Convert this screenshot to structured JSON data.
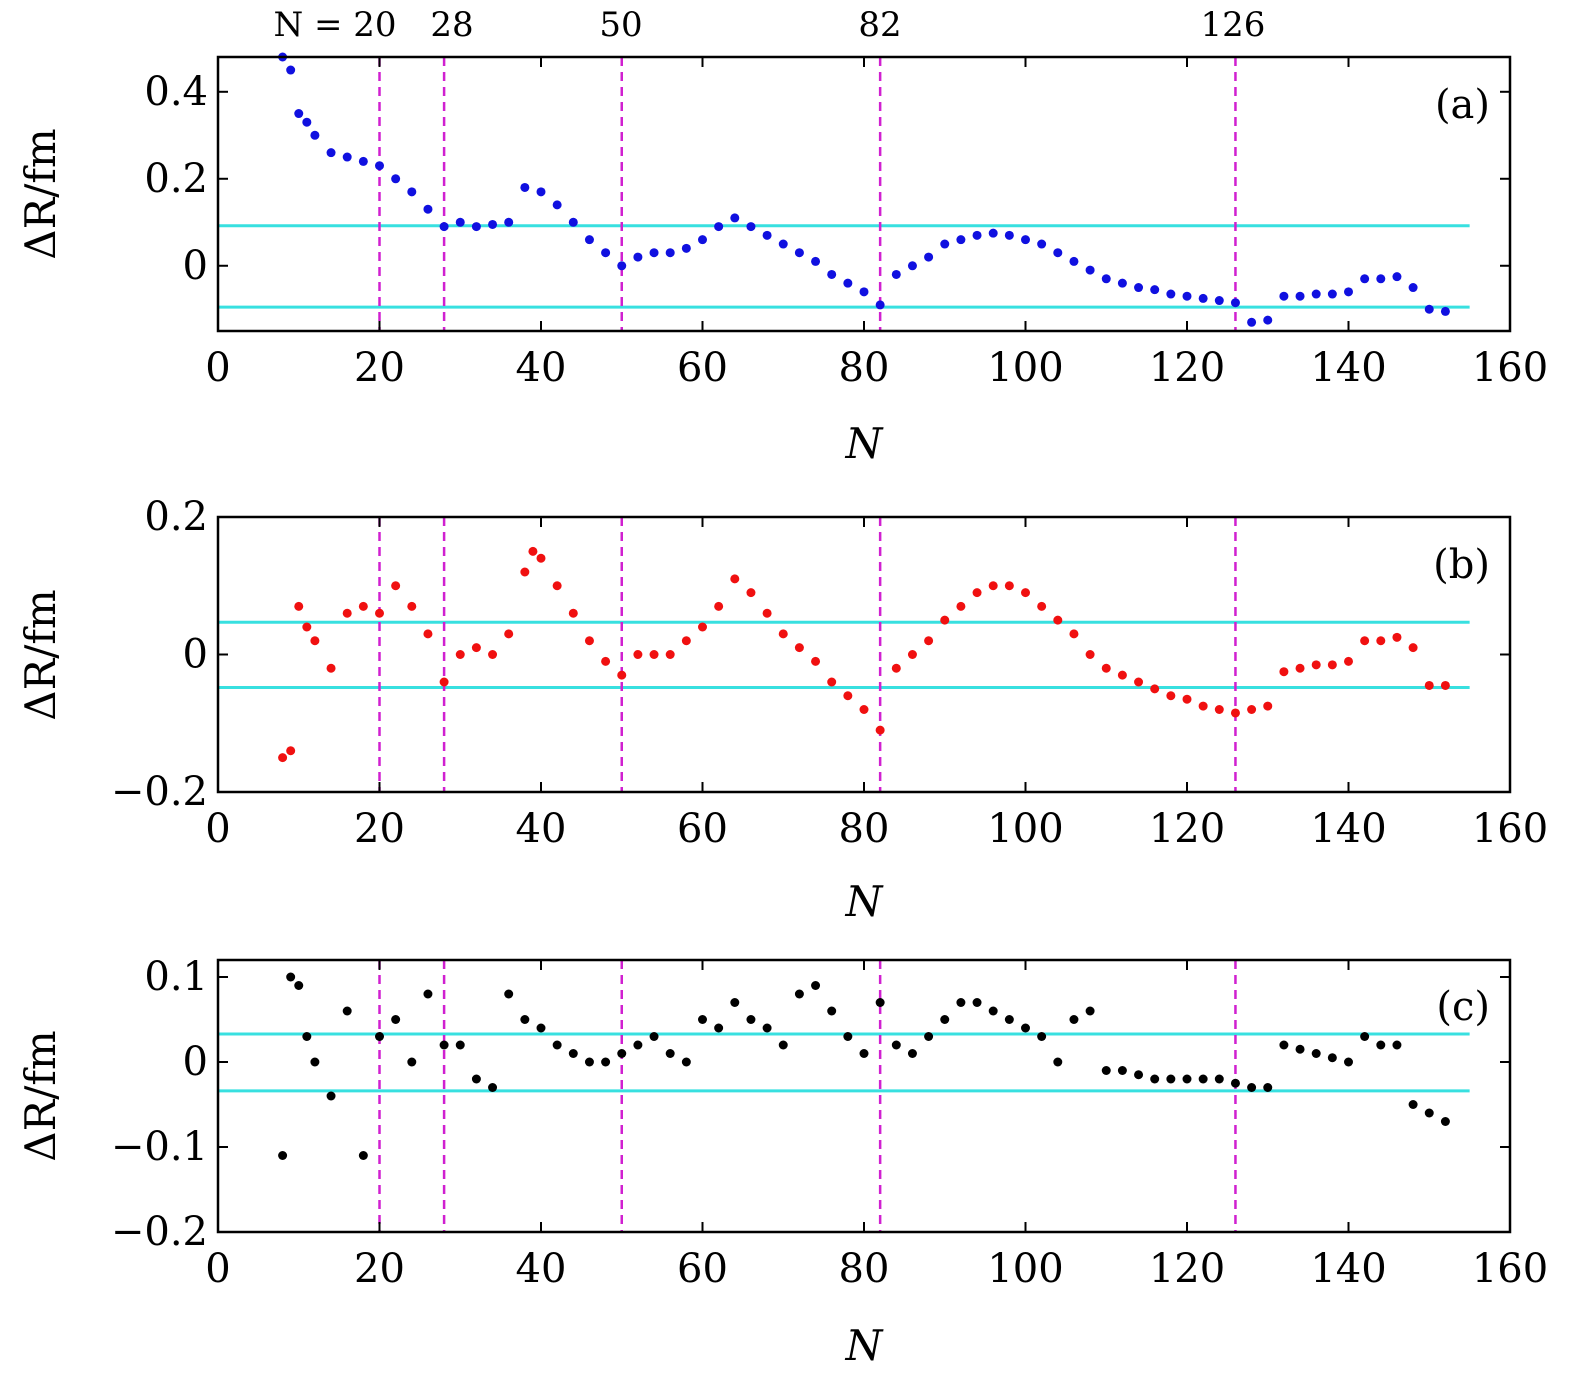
{
  "figure": {
    "magic_numbers": [
      20,
      28,
      50,
      82,
      126
    ],
    "magic_labels": [
      "N = 20",
      "28",
      "50",
      "82",
      "126"
    ],
    "colors": {
      "band": "#38e0e0",
      "magic_line": "#d020d0",
      "series_a": "#1010e0",
      "series_b": "#f01010",
      "series_c": "#000000"
    }
  },
  "chart_data": [
    {
      "type": "scatter",
      "panel_label": "(a)",
      "xlabel": "N",
      "ylabel": "ΔR/fm",
      "xlim": [
        0,
        160
      ],
      "ylim": [
        -0.15,
        0.48
      ],
      "xticks": [
        0,
        20,
        40,
        60,
        80,
        100,
        120,
        140,
        160
      ],
      "xtick_labels": [
        "0",
        "20",
        "40",
        "60",
        "80",
        "100",
        "120",
        "140",
        "160"
      ],
      "yticks": [
        0.4,
        0.2,
        0
      ],
      "ytick_labels": [
        "0.4",
        "0.2",
        "0"
      ],
      "band": [
        -0.095,
        0.092
      ],
      "color_key": "series_a",
      "series": [
        {
          "name": "trend",
          "points": [
            [
              8,
              0.48
            ],
            [
              9,
              0.45
            ],
            [
              10,
              0.35
            ],
            [
              11,
              0.33
            ],
            [
              12,
              0.3
            ],
            [
              14,
              0.26
            ],
            [
              16,
              0.25
            ],
            [
              18,
              0.24
            ],
            [
              20,
              0.23
            ],
            [
              22,
              0.2
            ],
            [
              24,
              0.17
            ],
            [
              26,
              0.13
            ],
            [
              28,
              0.09
            ],
            [
              30,
              0.1
            ],
            [
              32,
              0.09
            ],
            [
              34,
              0.095
            ],
            [
              36,
              0.1
            ],
            [
              38,
              0.18
            ],
            [
              40,
              0.17
            ],
            [
              42,
              0.14
            ],
            [
              44,
              0.1
            ],
            [
              46,
              0.06
            ],
            [
              48,
              0.03
            ],
            [
              50,
              0.0
            ],
            [
              52,
              0.02
            ],
            [
              54,
              0.03
            ],
            [
              56,
              0.03
            ],
            [
              58,
              0.04
            ],
            [
              60,
              0.06
            ],
            [
              62,
              0.09
            ],
            [
              64,
              0.11
            ],
            [
              66,
              0.09
            ],
            [
              68,
              0.07
            ],
            [
              70,
              0.05
            ],
            [
              72,
              0.03
            ],
            [
              74,
              0.01
            ],
            [
              76,
              -0.02
            ],
            [
              78,
              -0.04
            ],
            [
              80,
              -0.06
            ],
            [
              82,
              -0.09
            ],
            [
              84,
              -0.02
            ],
            [
              86,
              0.0
            ],
            [
              88,
              0.02
            ],
            [
              90,
              0.05
            ],
            [
              92,
              0.06
            ],
            [
              94,
              0.07
            ],
            [
              96,
              0.075
            ],
            [
              98,
              0.07
            ],
            [
              100,
              0.06
            ],
            [
              102,
              0.05
            ],
            [
              104,
              0.03
            ],
            [
              106,
              0.01
            ],
            [
              108,
              -0.01
            ],
            [
              110,
              -0.03
            ],
            [
              112,
              -0.04
            ],
            [
              114,
              -0.05
            ],
            [
              116,
              -0.055
            ],
            [
              118,
              -0.065
            ],
            [
              120,
              -0.07
            ],
            [
              122,
              -0.075
            ],
            [
              124,
              -0.08
            ],
            [
              126,
              -0.085
            ],
            [
              128,
              -0.13
            ],
            [
              130,
              -0.125
            ],
            [
              132,
              -0.07
            ],
            [
              134,
              -0.07
            ],
            [
              136,
              -0.065
            ],
            [
              138,
              -0.065
            ],
            [
              140,
              -0.06
            ],
            [
              142,
              -0.03
            ],
            [
              144,
              -0.03
            ],
            [
              146,
              -0.025
            ],
            [
              148,
              -0.05
            ],
            [
              150,
              -0.1
            ],
            [
              152,
              -0.105
            ]
          ]
        }
      ]
    },
    {
      "type": "scatter",
      "panel_label": "(b)",
      "xlabel": "N",
      "ylabel": "ΔR/fm",
      "xlim": [
        0,
        160
      ],
      "ylim": [
        -0.2,
        0.2
      ],
      "xticks": [
        0,
        20,
        40,
        60,
        80,
        100,
        120,
        140,
        160
      ],
      "xtick_labels": [
        "0",
        "20",
        "40",
        "60",
        "80",
        "100",
        "120",
        "140",
        "160"
      ],
      "yticks": [
        0.2,
        0,
        -0.2
      ],
      "ytick_labels": [
        "0.2",
        "0",
        "−0.2"
      ],
      "band": [
        -0.048,
        0.047
      ],
      "color_key": "series_b",
      "series": [
        {
          "name": "trend",
          "points": [
            [
              8,
              -0.15
            ],
            [
              9,
              -0.14
            ],
            [
              10,
              0.07
            ],
            [
              11,
              0.04
            ],
            [
              12,
              0.02
            ],
            [
              14,
              -0.02
            ],
            [
              16,
              0.06
            ],
            [
              18,
              0.07
            ],
            [
              20,
              0.06
            ],
            [
              22,
              0.1
            ],
            [
              24,
              0.07
            ],
            [
              26,
              0.03
            ],
            [
              28,
              -0.04
            ],
            [
              30,
              0.0
            ],
            [
              32,
              0.01
            ],
            [
              34,
              0.0
            ],
            [
              36,
              0.03
            ],
            [
              38,
              0.12
            ],
            [
              39,
              0.15
            ],
            [
              40,
              0.14
            ],
            [
              42,
              0.1
            ],
            [
              44,
              0.06
            ],
            [
              46,
              0.02
            ],
            [
              48,
              -0.01
            ],
            [
              50,
              -0.03
            ],
            [
              52,
              0.0
            ],
            [
              54,
              0.0
            ],
            [
              56,
              0.0
            ],
            [
              58,
              0.02
            ],
            [
              60,
              0.04
            ],
            [
              62,
              0.07
            ],
            [
              64,
              0.11
            ],
            [
              66,
              0.09
            ],
            [
              68,
              0.06
            ],
            [
              70,
              0.03
            ],
            [
              72,
              0.01
            ],
            [
              74,
              -0.01
            ],
            [
              76,
              -0.04
            ],
            [
              78,
              -0.06
            ],
            [
              80,
              -0.08
            ],
            [
              82,
              -0.11
            ],
            [
              84,
              -0.02
            ],
            [
              86,
              0.0
            ],
            [
              88,
              0.02
            ],
            [
              90,
              0.05
            ],
            [
              92,
              0.07
            ],
            [
              94,
              0.09
            ],
            [
              96,
              0.1
            ],
            [
              98,
              0.1
            ],
            [
              100,
              0.09
            ],
            [
              102,
              0.07
            ],
            [
              104,
              0.05
            ],
            [
              106,
              0.03
            ],
            [
              108,
              0.0
            ],
            [
              110,
              -0.02
            ],
            [
              112,
              -0.03
            ],
            [
              114,
              -0.04
            ],
            [
              116,
              -0.05
            ],
            [
              118,
              -0.06
            ],
            [
              120,
              -0.065
            ],
            [
              122,
              -0.075
            ],
            [
              124,
              -0.08
            ],
            [
              126,
              -0.085
            ],
            [
              128,
              -0.08
            ],
            [
              130,
              -0.075
            ],
            [
              132,
              -0.025
            ],
            [
              134,
              -0.02
            ],
            [
              136,
              -0.015
            ],
            [
              138,
              -0.015
            ],
            [
              140,
              -0.01
            ],
            [
              142,
              0.02
            ],
            [
              144,
              0.02
            ],
            [
              146,
              0.025
            ],
            [
              148,
              0.01
            ],
            [
              150,
              -0.045
            ],
            [
              152,
              -0.045
            ]
          ]
        }
      ]
    },
    {
      "type": "scatter",
      "panel_label": "(c)",
      "xlabel": "N",
      "ylabel": "ΔR/fm",
      "xlim": [
        0,
        160
      ],
      "ylim": [
        -0.2,
        0.12
      ],
      "xticks": [
        0,
        20,
        40,
        60,
        80,
        100,
        120,
        140,
        160
      ],
      "xtick_labels": [
        "0",
        "20",
        "40",
        "60",
        "80",
        "100",
        "120",
        "140",
        "160"
      ],
      "yticks": [
        0.1,
        0,
        -0.1,
        -0.2
      ],
      "ytick_labels": [
        "0.1",
        "0",
        "−0.1",
        "−0.2"
      ],
      "band": [
        -0.034,
        0.033
      ],
      "color_key": "series_c",
      "series": [
        {
          "name": "trend",
          "points": [
            [
              8,
              -0.11
            ],
            [
              9,
              0.1
            ],
            [
              10,
              0.09
            ],
            [
              11,
              0.03
            ],
            [
              12,
              0.0
            ],
            [
              14,
              -0.04
            ],
            [
              16,
              0.06
            ],
            [
              18,
              -0.11
            ],
            [
              20,
              0.03
            ],
            [
              22,
              0.05
            ],
            [
              24,
              0.0
            ],
            [
              26,
              0.08
            ],
            [
              28,
              0.02
            ],
            [
              30,
              0.02
            ],
            [
              32,
              -0.02
            ],
            [
              34,
              -0.03
            ],
            [
              36,
              0.08
            ],
            [
              38,
              0.05
            ],
            [
              40,
              0.04
            ],
            [
              42,
              0.02
            ],
            [
              44,
              0.01
            ],
            [
              46,
              0.0
            ],
            [
              48,
              0.0
            ],
            [
              50,
              0.01
            ],
            [
              52,
              0.02
            ],
            [
              54,
              0.03
            ],
            [
              56,
              0.01
            ],
            [
              58,
              0.0
            ],
            [
              60,
              0.05
            ],
            [
              62,
              0.04
            ],
            [
              64,
              0.07
            ],
            [
              66,
              0.05
            ],
            [
              68,
              0.04
            ],
            [
              70,
              0.02
            ],
            [
              72,
              0.08
            ],
            [
              74,
              0.09
            ],
            [
              76,
              0.06
            ],
            [
              78,
              0.03
            ],
            [
              80,
              0.01
            ],
            [
              82,
              0.07
            ],
            [
              84,
              0.02
            ],
            [
              86,
              0.01
            ],
            [
              88,
              0.03
            ],
            [
              90,
              0.05
            ],
            [
              92,
              0.07
            ],
            [
              94,
              0.07
            ],
            [
              96,
              0.06
            ],
            [
              98,
              0.05
            ],
            [
              100,
              0.04
            ],
            [
              102,
              0.03
            ],
            [
              104,
              0.0
            ],
            [
              106,
              0.05
            ],
            [
              108,
              0.06
            ],
            [
              110,
              -0.01
            ],
            [
              112,
              -0.01
            ],
            [
              114,
              -0.015
            ],
            [
              116,
              -0.02
            ],
            [
              118,
              -0.02
            ],
            [
              120,
              -0.02
            ],
            [
              122,
              -0.02
            ],
            [
              124,
              -0.02
            ],
            [
              126,
              -0.025
            ],
            [
              128,
              -0.03
            ],
            [
              130,
              -0.03
            ],
            [
              132,
              0.02
            ],
            [
              134,
              0.015
            ],
            [
              136,
              0.01
            ],
            [
              138,
              0.005
            ],
            [
              140,
              0.0
            ],
            [
              142,
              0.03
            ],
            [
              144,
              0.02
            ],
            [
              146,
              0.02
            ],
            [
              148,
              -0.05
            ],
            [
              150,
              -0.06
            ],
            [
              152,
              -0.07
            ]
          ]
        }
      ]
    }
  ]
}
